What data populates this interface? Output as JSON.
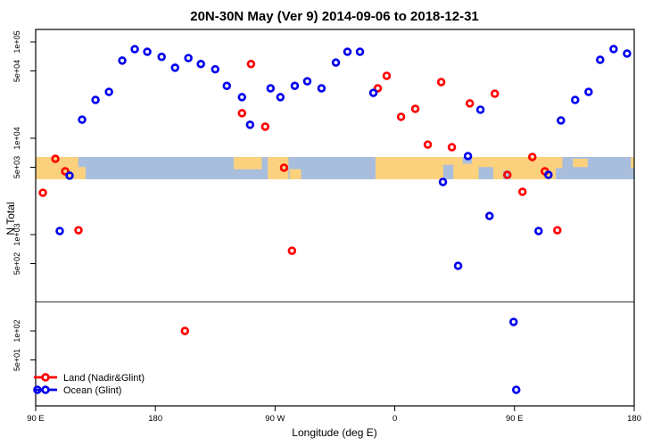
{
  "title": "20N-30N May (Ver 9)   2014-09-06 to 2018-12-31",
  "chart_data": {
    "type": "scatter",
    "title": "20N-30N May (Ver 9)   2014-09-06 to 2018-12-31",
    "xlabel": "Longitude (deg E)",
    "ylabel": "N Total",
    "x_axis": {
      "range": [
        90,
        540
      ],
      "ticks": [
        90,
        180,
        270,
        360,
        450,
        540
      ],
      "tick_labels": [
        "90 E",
        "180",
        "90 W",
        "0",
        "90 E",
        "180"
      ]
    },
    "y_axis": {
      "scale": "log",
      "top_value": 100000,
      "tick_values": [
        100000,
        50000,
        10000,
        5000,
        1000,
        500,
        100,
        50
      ],
      "tick_labels": [
        "1e+05",
        "5e+04",
        "1e+04",
        "5e+03",
        "1e+03",
        "5e+02",
        "1e+02",
        "5e+01"
      ]
    },
    "grid": false,
    "legend_position": "bottom-left",
    "separator_line_value": 200,
    "series": [
      {
        "name": "Land (Nadir&Glint)",
        "color": "#ff0000",
        "points": [
          [
            95.4,
            2720
          ],
          [
            104.8,
            6120
          ],
          [
            112.2,
            4540
          ],
          [
            122.2,
            1110
          ],
          [
            245.1,
            18200
          ],
          [
            251.9,
            59000
          ],
          [
            262.6,
            13200
          ],
          [
            276.7,
            4950
          ],
          [
            282.7,
            680
          ],
          [
            347.2,
            33000
          ],
          [
            353.9,
            44500
          ],
          [
            364.7,
            16700
          ],
          [
            375.4,
            20200
          ],
          [
            384.8,
            8600
          ],
          [
            394.9,
            38300
          ],
          [
            402.9,
            8070
          ],
          [
            416.4,
            23000
          ],
          [
            435.2,
            29000
          ],
          [
            444.6,
            4170
          ],
          [
            456.0,
            2780
          ],
          [
            463.4,
            6390
          ],
          [
            472.8,
            4540
          ],
          [
            482.2,
            1110
          ],
          [
            202.2,
            100
          ]
        ]
      },
      {
        "name": "Ocean (Glint)",
        "color": "#0000ee",
        "points": [
          [
            124.9,
            15600
          ],
          [
            135.0,
            25000
          ],
          [
            145.1,
            30300
          ],
          [
            155.1,
            64000
          ],
          [
            164.5,
            84000
          ],
          [
            173.9,
            79000
          ],
          [
            184.7,
            70000
          ],
          [
            194.8,
            54000
          ],
          [
            204.8,
            68000
          ],
          [
            214.2,
            59000
          ],
          [
            225.0,
            52000
          ],
          [
            233.7,
            35000
          ],
          [
            245.1,
            26700
          ],
          [
            251.2,
            13800
          ],
          [
            266.6,
            33000
          ],
          [
            274.0,
            26700
          ],
          [
            284.8,
            35000
          ],
          [
            294.2,
            39000
          ],
          [
            304.9,
            33000
          ],
          [
            315.7,
            61000
          ],
          [
            324.4,
            79000
          ],
          [
            333.8,
            79000
          ],
          [
            343.9,
            29600
          ],
          [
            115.5,
            4090
          ],
          [
            108.1,
            1090
          ],
          [
            424.4,
            19800
          ],
          [
            415.0,
            6530
          ],
          [
            396.2,
            3520
          ],
          [
            475.5,
            4170
          ],
          [
            431.2,
            1560
          ],
          [
            468.1,
            1090
          ],
          [
            407.6,
            474
          ],
          [
            484.9,
            15300
          ],
          [
            495.6,
            25000
          ],
          [
            505.7,
            30300
          ],
          [
            514.4,
            65300
          ],
          [
            524.5,
            84300
          ],
          [
            534.6,
            75800
          ],
          [
            449.3,
            124
          ],
          [
            451.3,
            24.5
          ],
          [
            91.3,
            24.5
          ]
        ]
      }
    ],
    "map_band": {
      "note": "geographic land/ocean reference strip at 20N-30N",
      "ocean_color": "#a9bedc",
      "land_color": "#fcd17e",
      "land_segments": [
        [
          90,
          122,
          0,
          1
        ],
        [
          122,
          127.5,
          0.45,
          1
        ],
        [
          239,
          260,
          0,
          0.55
        ],
        [
          264.5,
          280,
          0,
          1
        ],
        [
          281,
          289.5,
          0.55,
          1
        ],
        [
          345.5,
          481,
          0,
          1
        ],
        [
          481,
          486,
          0,
          0.5
        ],
        [
          494,
          505,
          0.08,
          0.45
        ],
        [
          537.5,
          540,
          0,
          0.5
        ]
      ],
      "ocean_gaps": [
        [
          396.5,
          404,
          0.35,
          1
        ],
        [
          411,
          418,
          0,
          0.3
        ],
        [
          423,
          434,
          0.45,
          1
        ],
        [
          441.5,
          447,
          0.6,
          1
        ]
      ]
    }
  },
  "legend": {
    "items": [
      {
        "label": "Land (Nadir&Glint)",
        "color": "#ff0000"
      },
      {
        "label": "Ocean (Glint)",
        "color": "#0000ee"
      }
    ]
  }
}
